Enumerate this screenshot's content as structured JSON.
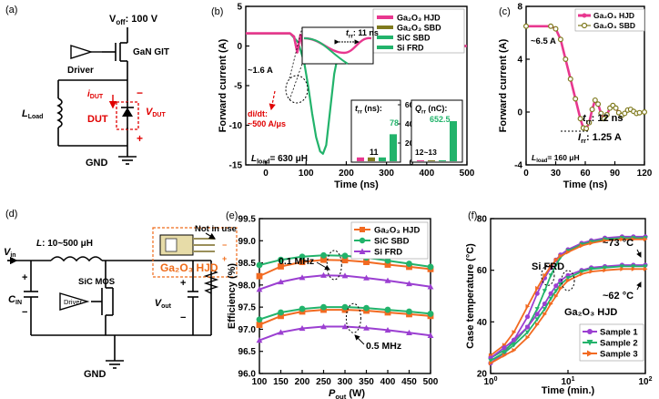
{
  "colors": {
    "hjd": "#e8378f",
    "sbd": "#7f7a1e",
    "sic": "#22b36b",
    "sifrd": "#22b36b",
    "eff_hjd": "#f26a21",
    "eff_sic": "#22b36b",
    "eff_sifrd": "#9b3fd1",
    "s1": "#9b3fd1",
    "s2": "#22b36b",
    "s3": "#f26a21",
    "red": "#e00000",
    "orange": "#ef6c1a"
  },
  "panel_a": {
    "letter": "(a)",
    "voff": "V",
    "voff_sub": "off",
    "voff_val": ": 100 V",
    "gan": "GaN GIT",
    "driver": "Driver",
    "lload": "L",
    "lload_sub": "Load",
    "idut": "i",
    "idut_sub": "DUT",
    "vdut": "V",
    "vdut_sub": "DUT",
    "dut": "DUT",
    "minus": "−",
    "plus": "+",
    "gnd": "GND"
  },
  "panel_b": {
    "letter": "(b)",
    "ylabel": "Forward current (A)",
    "xlabel": "Time (ns)",
    "ann_16": "~1.6 A",
    "ann_didt1": "di/dt:",
    "ann_didt2": "~500 A/μs",
    "ann_lload": "L",
    "ann_lload_sub": "load",
    "ann_lload_val": "= 630 μH",
    "ann_trr": "t",
    "ann_trr_sub": "rr",
    "ann_trr_val": ": 11 ns",
    "legend": [
      "Ga₂O₃ HJD",
      "Ga₂O₃ SBD",
      "SiC SBD",
      "Si FRD"
    ],
    "inset1_title": "t",
    "inset1_title_sub": "rr",
    "inset1_title_val": " (ns):",
    "inset1_labels": [
      "11",
      "78"
    ],
    "inset1_ticks": [
      "0",
      "200",
      "400",
      "600"
    ],
    "inset2_title": "Q",
    "inset2_title_sub": "rr",
    "inset2_title_val": " (nC):",
    "inset2_labels": [
      "12~13",
      "652.5"
    ]
  },
  "panel_c": {
    "letter": "(c)",
    "ylabel": "Forward current (A)",
    "xlabel": "Time (ns)",
    "legend": [
      "Ga₂O₃ HJD",
      "Ga₂O₃ SBD"
    ],
    "ann_65": "~6.5 A",
    "ann_trr": "t",
    "ann_trr_sub": "rr",
    "ann_trr_val": ": 12 ns",
    "ann_irr": "I",
    "ann_irr_sub": "rr",
    "ann_irr_val": ": 1.25 A",
    "ann_lload": "L",
    "ann_lload_sub": "load",
    "ann_lload_val": "= 160 μH"
  },
  "panel_d": {
    "letter": "(d)",
    "vin": "V",
    "vin_sub": "in",
    "l": "L",
    "l_val": ": 10~500 μH",
    "cin": "C",
    "cin_sub": "IN",
    "sic": "SiC MOS",
    "driver": "Driver",
    "vout": "V",
    "vout_sub": "out",
    "gnd": "GND",
    "notinuse": "Not in use",
    "device": "Ga₂O₃ HJD",
    "plus": "+",
    "minus": "−"
  },
  "panel_e": {
    "letter": "(e)",
    "ylabel": "Efficiency (%)",
    "xlabel_main": "P",
    "xlabel_sub": "out",
    "xlabel_unit": " (W)",
    "legend": [
      "Ga₂O₃ HJD",
      "SiC SBD",
      "Si FRD"
    ],
    "ann_01": "0.1 MHz",
    "ann_05": "0.5 MHz"
  },
  "panel_f": {
    "letter": "(f)",
    "ylabel": "Case temperature (°C)",
    "xlabel": "Time (min.)",
    "legend": [
      "Sample 1",
      "Sample 2",
      "Sample 3"
    ],
    "ann_sifrd": "Si FRD",
    "ann_hjd": "Ga₂O₃ HJD",
    "ann_73": "~73 °C",
    "ann_62": "~62 °C"
  },
  "chart_data": [
    {
      "id": "b",
      "type": "line",
      "xlabel": "Time (ns)",
      "ylabel": "Forward current (A)",
      "xlim": [
        -50,
        500
      ],
      "ylim": [
        -15,
        5
      ],
      "xticks": [
        0,
        100,
        200,
        300,
        400,
        500
      ],
      "yticks": [
        -15,
        -10,
        -5,
        0,
        5
      ],
      "series": [
        {
          "name": "Si FRD",
          "x": [
            -50,
            60,
            80,
            95,
            105,
            115,
            125,
            135,
            142,
            150,
            160,
            170,
            180,
            190,
            200,
            500
          ],
          "y": [
            1.6,
            1.6,
            0.5,
            -2,
            -5,
            -8.5,
            -11.5,
            -13.3,
            -13.6,
            -12.5,
            -8,
            -3.5,
            -1,
            0,
            0,
            0
          ]
        },
        {
          "name": "Ga₂O₃ HJD",
          "x": [
            -50,
            60,
            70,
            78,
            86,
            94,
            102,
            110,
            118,
            126,
            134,
            142,
            150,
            160,
            170,
            185,
            200,
            500
          ],
          "y": [
            1.6,
            1.6,
            1.2,
            -0.8,
            1.4,
            -0.6,
            0.9,
            -0.4,
            0.6,
            -0.3,
            0.4,
            -0.15,
            0.25,
            -0.1,
            0.1,
            0,
            0,
            0
          ]
        },
        {
          "name": "Ga₂O₃ SBD",
          "x": [
            -50,
            60,
            70,
            78,
            86,
            94,
            102,
            110,
            118,
            126,
            134,
            142,
            150,
            160,
            170,
            185,
            200,
            500
          ],
          "y": [
            1.6,
            1.6,
            1.2,
            -0.8,
            1.4,
            -0.6,
            0.9,
            -0.4,
            0.6,
            -0.3,
            0.4,
            -0.15,
            0.25,
            -0.1,
            0.1,
            0,
            0,
            0
          ]
        },
        {
          "name": "SiC SBD",
          "x": [
            -50,
            60,
            70,
            78,
            86,
            94,
            102,
            110,
            118,
            126,
            134,
            142,
            150,
            160,
            170,
            185,
            200,
            500
          ],
          "y": [
            1.6,
            1.6,
            1.2,
            -0.8,
            1.4,
            -0.6,
            0.9,
            -0.4,
            0.6,
            -0.3,
            0.4,
            -0.15,
            0.25,
            -0.1,
            0.1,
            0,
            0,
            0
          ]
        }
      ]
    },
    {
      "id": "b_inset_trr",
      "type": "bar",
      "title": "trr (ns)",
      "categories": [
        "Ga₂O₃ HJD",
        "Ga₂O₃ SBD",
        "SiC SBD",
        "Si FRD"
      ],
      "values": [
        11,
        11,
        11,
        78
      ],
      "ylim": [
        0,
        600
      ],
      "yticks": [
        0,
        200,
        400,
        600
      ],
      "break": true
    },
    {
      "id": "b_inset_qrr",
      "type": "bar",
      "title": "Qrr (nC)",
      "categories": [
        "Ga₂O₃ HJD",
        "Ga₂O₃ SBD",
        "SiC SBD",
        "Si FRD"
      ],
      "values": [
        12.5,
        12.5,
        13,
        652.5
      ],
      "ylim": [
        0,
        800
      ],
      "yticks": [
        0,
        200,
        400,
        600,
        800
      ],
      "break": true
    },
    {
      "id": "c",
      "type": "line",
      "xlabel": "Time (ns)",
      "ylabel": "Forward current (A)",
      "xlim": [
        0,
        120
      ],
      "ylim": [
        -4,
        8
      ],
      "xticks": [
        0,
        30,
        60,
        90,
        120
      ],
      "yticks": [
        -4,
        0,
        4,
        8
      ],
      "series": [
        {
          "name": "Ga₂O₃ HJD",
          "x": [
            0,
            25,
            30,
            35,
            40,
            45,
            50,
            55,
            58,
            61,
            64,
            67,
            70,
            73,
            76,
            79,
            82,
            85,
            88,
            91,
            94,
            97,
            100,
            103,
            106,
            109,
            112,
            115,
            120
          ],
          "y": [
            6.5,
            6.5,
            6.3,
            5.5,
            4.0,
            2.5,
            1.0,
            -0.5,
            -1.2,
            -1.25,
            -0.8,
            0.2,
            0.9,
            0.6,
            -0.1,
            -0.5,
            -0.2,
            0.3,
            0.5,
            0.3,
            -0.05,
            -0.25,
            -0.1,
            0.15,
            0.2,
            0.05,
            -0.1,
            -0.05,
            0
          ]
        },
        {
          "name": "Ga₂O₃ SBD",
          "x": [
            0,
            25,
            30,
            35,
            40,
            45,
            50,
            55,
            58,
            61,
            64,
            67,
            70,
            73,
            76,
            79,
            82,
            85,
            88,
            91,
            94,
            97,
            100,
            103,
            106,
            109,
            112,
            115,
            120
          ],
          "y": [
            6.5,
            6.5,
            6.3,
            5.5,
            4.0,
            2.5,
            1.0,
            -0.5,
            -1.2,
            -1.25,
            -0.8,
            0.2,
            0.9,
            0.6,
            -0.1,
            -0.5,
            -0.2,
            0.3,
            0.5,
            0.3,
            -0.05,
            -0.25,
            -0.1,
            0.15,
            0.2,
            0.05,
            -0.1,
            -0.05,
            0
          ]
        }
      ]
    },
    {
      "id": "e",
      "type": "line",
      "xlabel": "Pout (W)",
      "ylabel": "Efficiency (%)",
      "xlim": [
        100,
        500
      ],
      "ylim": [
        96,
        99.5
      ],
      "xticks": [
        100,
        150,
        200,
        250,
        300,
        350,
        400,
        450,
        500
      ],
      "yticks": [
        96.0,
        96.5,
        97.0,
        97.5,
        98.0,
        98.5,
        99.0,
        99.5
      ],
      "series": [
        {
          "name": "Ga₂O₃ HJD",
          "group": "0.1 MHz",
          "x": [
            100,
            150,
            200,
            250,
            300,
            350,
            400,
            450,
            500
          ],
          "y": [
            98.2,
            98.42,
            98.52,
            98.57,
            98.56,
            98.52,
            98.46,
            98.41,
            98.36
          ]
        },
        {
          "name": "SiC SBD",
          "group": "0.1 MHz",
          "x": [
            100,
            150,
            200,
            250,
            300,
            350,
            400,
            450,
            500
          ],
          "y": [
            98.45,
            98.57,
            98.64,
            98.67,
            98.66,
            98.62,
            98.55,
            98.48,
            98.41
          ]
        },
        {
          "name": "Si FRD",
          "group": "0.1 MHz",
          "x": [
            100,
            150,
            200,
            250,
            300,
            350,
            400,
            450,
            500
          ],
          "y": [
            97.9,
            98.07,
            98.17,
            98.22,
            98.21,
            98.16,
            98.1,
            98.03,
            97.96
          ]
        },
        {
          "name": "Ga₂O₃ HJD",
          "group": "0.5 MHz",
          "x": [
            100,
            150,
            200,
            250,
            300,
            350,
            400,
            450,
            500
          ],
          "y": [
            97.1,
            97.3,
            97.4,
            97.44,
            97.44,
            97.42,
            97.38,
            97.34,
            97.3
          ]
        },
        {
          "name": "SiC SBD",
          "group": "0.5 MHz",
          "x": [
            100,
            150,
            200,
            250,
            300,
            350,
            400,
            450,
            500
          ],
          "y": [
            97.22,
            97.38,
            97.46,
            97.5,
            97.5,
            97.48,
            97.44,
            97.4,
            97.35
          ]
        },
        {
          "name": "Si FRD",
          "group": "0.5 MHz",
          "x": [
            100,
            150,
            200,
            250,
            300,
            350,
            400,
            450,
            500
          ],
          "y": [
            96.75,
            96.93,
            97.02,
            97.06,
            97.06,
            97.03,
            96.98,
            96.92,
            96.86
          ]
        }
      ]
    },
    {
      "id": "f",
      "type": "line",
      "xlabel": "Time (min.)",
      "ylabel": "Case temperature (°C)",
      "xscale": "log",
      "xlim": [
        1,
        100
      ],
      "ylim": [
        20,
        80
      ],
      "xticks": [
        1,
        10,
        100
      ],
      "yticks": [
        20,
        40,
        60,
        80
      ],
      "series": [
        {
          "name": "Sample 1",
          "device": "Si FRD",
          "x": [
            1,
            1.5,
            2,
            3,
            4,
            5,
            6,
            7,
            8,
            10,
            15,
            20,
            30,
            50,
            70,
            100
          ],
          "y": [
            24,
            28,
            33,
            42,
            51,
            57,
            61,
            64,
            66,
            68,
            70.5,
            71.5,
            72.5,
            73,
            73,
            73
          ]
        },
        {
          "name": "Sample 2",
          "device": "Si FRD",
          "x": [
            1,
            1.5,
            2,
            3,
            4,
            5,
            6,
            7,
            8,
            10,
            15,
            20,
            30,
            50,
            70,
            100
          ],
          "y": [
            26,
            29,
            32,
            38,
            45,
            52,
            58,
            62,
            65,
            67.5,
            70,
            71,
            72,
            72.5,
            72.5,
            72.5
          ]
        },
        {
          "name": "Sample 3",
          "device": "Si FRD",
          "x": [
            1,
            1.5,
            2,
            3,
            4,
            5,
            6,
            7,
            8,
            10,
            15,
            20,
            30,
            50,
            70,
            100
          ],
          "y": [
            27,
            31,
            36,
            46,
            53,
            58,
            61.5,
            64,
            65.5,
            67,
            69.5,
            70.5,
            71.5,
            72,
            72,
            72
          ]
        },
        {
          "name": "Sample 1",
          "device": "Ga₂O₃ HJD",
          "x": [
            1,
            1.5,
            2,
            3,
            4,
            5,
            6,
            7,
            8,
            10,
            15,
            20,
            30,
            50,
            70,
            100
          ],
          "y": [
            26,
            30,
            33,
            38,
            43,
            47,
            51,
            54,
            56,
            58,
            60,
            61,
            61.5,
            62,
            62,
            62
          ]
        },
        {
          "name": "Sample 2",
          "device": "Ga₂O₃ HJD",
          "x": [
            1,
            1.5,
            2,
            3,
            4,
            5,
            6,
            7,
            8,
            10,
            15,
            20,
            30,
            50,
            70,
            100
          ],
          "y": [
            25,
            28,
            31,
            36,
            41,
            45,
            49,
            52,
            54.5,
            57,
            59.5,
            60.5,
            61,
            61.5,
            61.5,
            61.5
          ]
        },
        {
          "name": "Sample 3",
          "device": "Ga₂O₃ HJD",
          "x": [
            1,
            1.5,
            2,
            3,
            4,
            5,
            6,
            7,
            8,
            10,
            15,
            20,
            30,
            50,
            70,
            100
          ],
          "y": [
            24,
            27,
            29,
            34,
            39,
            43,
            47,
            50,
            53,
            56,
            58.5,
            59.5,
            60,
            60.5,
            60.5,
            60.5
          ]
        }
      ]
    }
  ]
}
